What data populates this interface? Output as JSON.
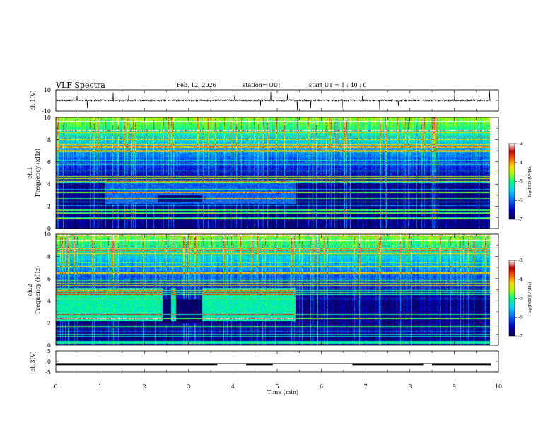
{
  "header": {
    "title": "VLF Spectra",
    "date": "Feb. 12, 2026",
    "station": "station= OUJ",
    "start": "start  UT =   1 : 40 : 0"
  },
  "colors": {
    "background": "#ffffff",
    "axis": "#000000",
    "colormap": [
      "#0a0050",
      "#0000c8",
      "#0064ff",
      "#00d2ff",
      "#00ff7f",
      "#aaff00",
      "#ffdc00",
      "#ff5a00",
      "#c80000",
      "#ffffff"
    ]
  },
  "chart_data": [
    {
      "id": "ch1_waveform",
      "type": "line",
      "ylabel": "ch.1(V)",
      "ylim": [
        -10,
        10
      ],
      "y_tick_labels": [
        "10",
        "-10"
      ],
      "baseline": 0,
      "x_range_min": [
        0,
        9.83
      ]
    },
    {
      "id": "ch1_spectrogram",
      "type": "heatmap",
      "ylabel": "ch.1\nFrequency  (kHz)",
      "ylim": [
        0,
        10
      ],
      "y_ticks": [
        0,
        2,
        4,
        6,
        8,
        10
      ],
      "y_tick_labels": [
        "0",
        "2",
        "4",
        "6",
        "8",
        "10"
      ],
      "colorbar": {
        "label": "log(PSD)(V²/Hz)",
        "range": [
          -7,
          -3
        ],
        "tick_labels": [
          "-3",
          "-4",
          "-5",
          "-6",
          "-7"
        ]
      }
    },
    {
      "id": "ch2_spectrogram",
      "type": "heatmap",
      "ylabel": "ch.2\nFrequency  (kHz)",
      "ylim": [
        0,
        10
      ],
      "y_ticks": [
        0,
        2,
        4,
        6,
        8,
        10
      ],
      "y_tick_labels": [
        "0",
        "2",
        "4",
        "6",
        "8",
        "10"
      ],
      "dropout_segments_min": [
        [
          2.4,
          2.6
        ],
        [
          2.7,
          3.3
        ]
      ],
      "band_end_min": 5.4,
      "colorbar": {
        "label": "log(PSD)(V²/Hz)",
        "range": [
          -7,
          -3
        ],
        "tick_labels": [
          "-3",
          "-4",
          "-5",
          "-6",
          "-7"
        ]
      }
    },
    {
      "id": "ch3_waveform",
      "type": "line",
      "ylabel": "ch.3(V)",
      "ylim": [
        -5,
        5
      ],
      "y_tick_labels": [
        "5",
        "0",
        "-5"
      ],
      "level": -1.3,
      "gaps_min": [
        [
          3.65,
          4.3
        ],
        [
          4.9,
          6.7
        ],
        [
          8.3,
          8.5
        ]
      ]
    }
  ],
  "x_axis": {
    "label": "Time  (min)",
    "range": [
      0,
      10
    ],
    "tick_labels": [
      "0",
      "1",
      "2",
      "3",
      "4",
      "5",
      "6",
      "7",
      "8",
      "9",
      "10"
    ]
  }
}
